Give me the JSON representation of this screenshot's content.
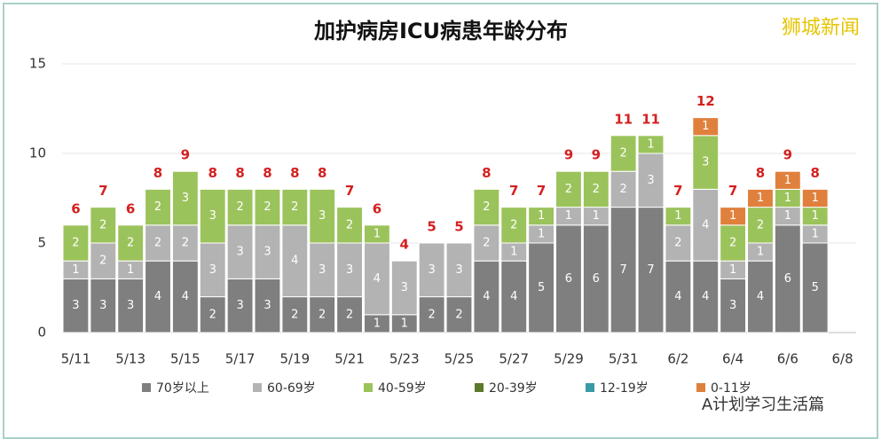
{
  "chart_data": {
    "type": "stacked-bar",
    "title": "加护病房ICU病患年龄分布",
    "watermark": "狮城新闻",
    "footer": "A计划学习生活篇",
    "categories": [
      "5/11",
      null,
      "5/13",
      null,
      "5/15",
      null,
      "5/17",
      null,
      "5/19",
      null,
      "5/21",
      null,
      "5/23",
      null,
      "5/25",
      null,
      "5/27",
      null,
      "5/29",
      null,
      "5/31",
      null,
      "6/2",
      null,
      "6/4",
      null,
      "6/6",
      null,
      "6/8"
    ],
    "series": [
      {
        "name": "70岁以上",
        "color": "#7f7f7f",
        "values": [
          3,
          3,
          3,
          4,
          4,
          2,
          3,
          3,
          2,
          2,
          2,
          1,
          1,
          2,
          2,
          4,
          4,
          5,
          6,
          6,
          7,
          7,
          4,
          4,
          3,
          4,
          6,
          5,
          null
        ]
      },
      {
        "name": "60-69岁",
        "color": "#b3b3b3",
        "values": [
          1,
          2,
          1,
          2,
          2,
          3,
          3,
          3,
          4,
          3,
          3,
          4,
          3,
          3,
          3,
          2,
          1,
          1,
          1,
          1,
          2,
          3,
          2,
          4,
          1,
          1,
          1,
          1,
          null
        ]
      },
      {
        "name": "40-59岁",
        "color": "#9bc35b",
        "values": [
          2,
          2,
          2,
          2,
          3,
          3,
          2,
          2,
          2,
          3,
          2,
          1,
          null,
          null,
          null,
          2,
          2,
          1,
          2,
          2,
          2,
          1,
          1,
          3,
          2,
          2,
          1,
          1,
          null
        ]
      },
      {
        "name": "20-39岁",
        "color": "#5b7a2b",
        "values": [
          null,
          null,
          null,
          null,
          null,
          null,
          null,
          null,
          null,
          null,
          null,
          null,
          null,
          null,
          null,
          null,
          null,
          null,
          null,
          null,
          null,
          null,
          null,
          null,
          null,
          null,
          null,
          null,
          null
        ]
      },
      {
        "name": "12-19岁",
        "color": "#3a9aa8",
        "values": [
          null,
          null,
          null,
          null,
          null,
          null,
          null,
          null,
          null,
          null,
          null,
          null,
          null,
          null,
          null,
          null,
          null,
          null,
          null,
          null,
          null,
          null,
          null,
          null,
          null,
          null,
          null,
          null,
          null
        ]
      },
      {
        "name": "0-11岁",
        "color": "#e0803d",
        "values": [
          null,
          null,
          null,
          null,
          null,
          null,
          null,
          null,
          null,
          null,
          null,
          null,
          null,
          null,
          null,
          null,
          null,
          null,
          null,
          null,
          null,
          null,
          null,
          1,
          1,
          1,
          1,
          1,
          null
        ]
      }
    ],
    "totals": [
      6,
      7,
      6,
      8,
      9,
      8,
      8,
      8,
      8,
      8,
      7,
      6,
      4,
      5,
      5,
      8,
      7,
      7,
      9,
      9,
      11,
      11,
      7,
      12,
      7,
      8,
      9,
      8,
      null
    ],
    "ylim": [
      0,
      15
    ],
    "yticks": [
      0,
      5,
      10,
      15
    ],
    "grid": true
  }
}
